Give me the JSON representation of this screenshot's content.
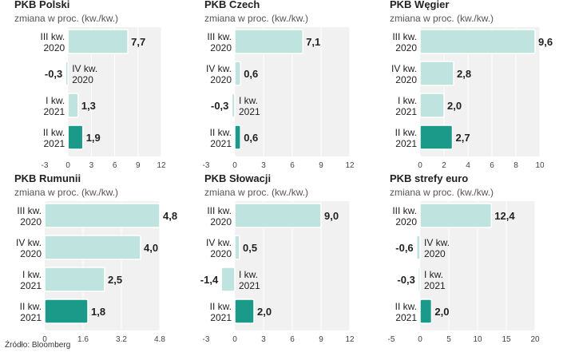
{
  "source": "Źródło: Bloomberg",
  "colors": {
    "light": "#bfe3df",
    "dark": "#1b9a8a",
    "panel": "#f1f1f1",
    "text": "#222222"
  },
  "subtitle": "zmiana w proc. (kw./kw.)",
  "chart_data": [
    {
      "type": "bar",
      "title": "PKB Polski",
      "subtitle": "zmiana w proc. (kw./kw.)",
      "categories": [
        "III kw. 2020",
        "IV kw. 2020",
        "I kw. 2021",
        "II kw. 2021"
      ],
      "values": [
        7.7,
        -0.3,
        1.3,
        1.9
      ],
      "value_labels": [
        "7,7",
        "-0,3",
        "1,3",
        "1,9"
      ],
      "xlim": [
        -3,
        12
      ],
      "ticks": [
        -3,
        0,
        3,
        6,
        9,
        12
      ],
      "tick_labels": [
        "-3",
        "0",
        "3",
        "6",
        "9",
        "12"
      ]
    },
    {
      "type": "bar",
      "title": "PKB Czech",
      "subtitle": "zmiana w proc. (kw./kw.)",
      "categories": [
        "III kw. 2020",
        "IV kw. 2020",
        "I kw. 2021",
        "II kw. 2021"
      ],
      "values": [
        7.1,
        0.6,
        -0.3,
        0.6
      ],
      "value_labels": [
        "7,1",
        "0,6",
        "-0,3",
        "0,6"
      ],
      "xlim": [
        -3,
        12
      ],
      "ticks": [
        -3,
        0,
        3,
        6,
        9,
        12
      ],
      "tick_labels": [
        "-3",
        "0",
        "3",
        "6",
        "9",
        "12"
      ]
    },
    {
      "type": "bar",
      "title": "PKB Węgier",
      "subtitle": "zmiana w proc. (kw./kw.)",
      "categories": [
        "III kw. 2020",
        "IV kw. 2020",
        "I kw. 2021",
        "II kw. 2021"
      ],
      "values": [
        9.6,
        2.8,
        2.0,
        2.7
      ],
      "value_labels": [
        "9,6",
        "2,8",
        "2,0",
        "2,7"
      ],
      "xlim": [
        0,
        10
      ],
      "ticks": [
        0,
        2,
        4,
        6,
        8,
        10
      ],
      "tick_labels": [
        "0",
        "2",
        "4",
        "6",
        "8",
        "10"
      ]
    },
    {
      "type": "bar",
      "title": "PKB Rumunii",
      "subtitle": "zmiana w proc. (kw./kw.)",
      "categories": [
        "III kw. 2020",
        "IV kw. 2020",
        "I kw. 2021",
        "II kw. 2021"
      ],
      "values": [
        4.8,
        4.0,
        2.5,
        1.8
      ],
      "value_labels": [
        "4,8",
        "4,0",
        "2,5",
        "1,8"
      ],
      "xlim": [
        0,
        4.8
      ],
      "ticks": [
        0,
        1.6,
        3.2,
        4.8
      ],
      "tick_labels": [
        "0",
        "1.6",
        "3.2",
        "4.8"
      ]
    },
    {
      "type": "bar",
      "title": "PKB Słowacji",
      "subtitle": "zmiana w proc. (kw./kw.)",
      "categories": [
        "III kw. 2020",
        "IV kw. 2020",
        "I kw. 2021",
        "II kw. 2021"
      ],
      "values": [
        9.0,
        0.5,
        -1.4,
        2.0
      ],
      "value_labels": [
        "9,0",
        "0,5",
        "-1,4",
        "2,0"
      ],
      "xlim": [
        -3,
        12
      ],
      "ticks": [
        -3,
        0,
        3,
        6,
        9,
        12
      ],
      "tick_labels": [
        "-3",
        "0",
        "3",
        "6",
        "9",
        "12"
      ]
    },
    {
      "type": "bar",
      "title": "PKB strefy euro",
      "subtitle": "zmiana w proc. (kw./kw.)",
      "categories": [
        "III kw. 2020",
        "IV kw. 2020",
        "I kw. 2021",
        "II kw. 2021"
      ],
      "values": [
        12.4,
        -0.6,
        -0.3,
        2.0
      ],
      "value_labels": [
        "12,4",
        "-0,6",
        "-0,3",
        "2,0"
      ],
      "xlim": [
        -5,
        20
      ],
      "ticks": [
        -5,
        0,
        5,
        10,
        15,
        20
      ],
      "tick_labels": [
        "-5",
        "0",
        "5",
        "10",
        "15",
        "20"
      ]
    }
  ]
}
